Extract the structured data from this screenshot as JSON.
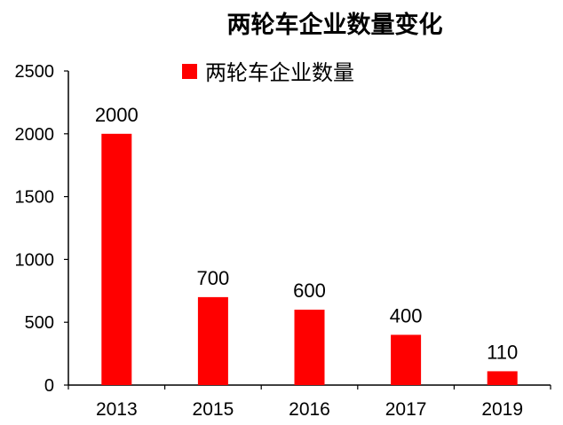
{
  "chart_data": {
    "type": "bar",
    "title": "两轮车企业数量变化",
    "xlabel": "",
    "ylabel": "",
    "categories": [
      "2013",
      "2015",
      "2016",
      "2017",
      "2019"
    ],
    "series": [
      {
        "name": "两轮车企业数量",
        "values": [
          2000,
          700,
          600,
          400,
          110
        ],
        "color": "#ff0000"
      }
    ],
    "ylim": [
      0,
      2500
    ],
    "yticks": [
      "0",
      "500",
      "1000",
      "1500",
      "2000",
      "2500"
    ],
    "data_labels": [
      "2000",
      "700",
      "600",
      "400",
      "110"
    ],
    "legend": "top",
    "grid": false
  }
}
